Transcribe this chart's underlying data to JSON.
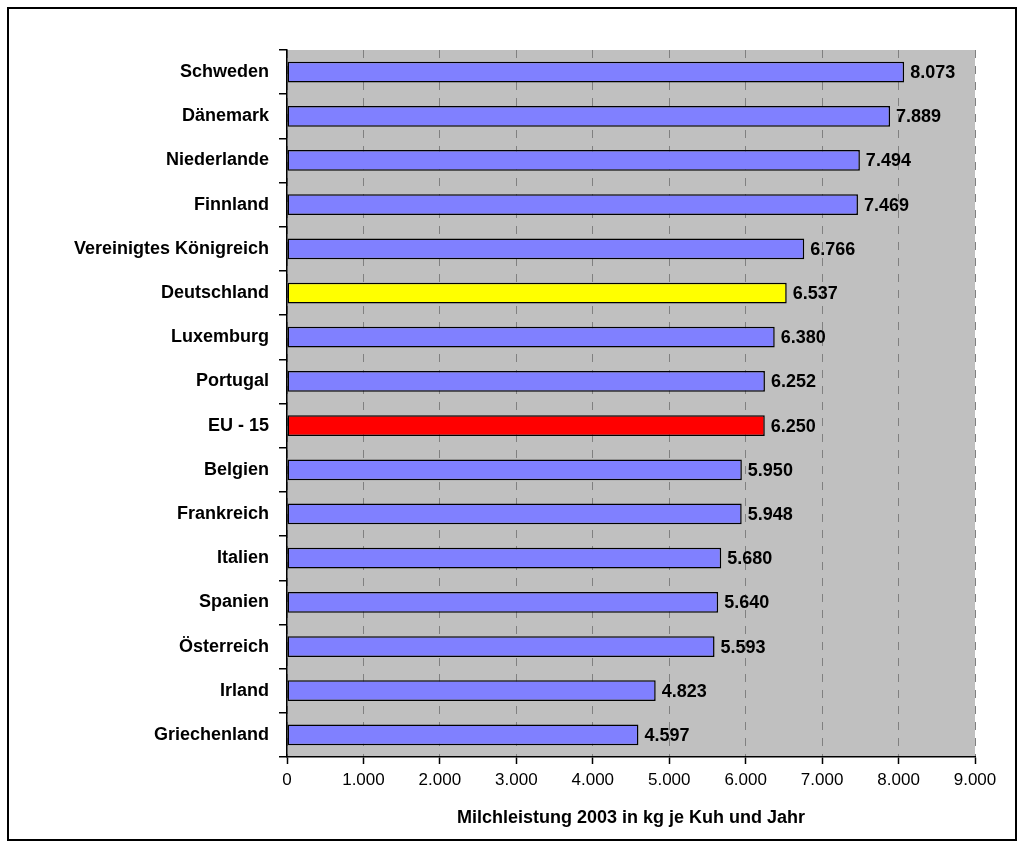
{
  "chart_data": {
    "type": "bar",
    "orientation": "horizontal",
    "xlabel": "Milchleistung 2003 in kg je Kuh und Jahr",
    "categories": [
      "Schweden",
      "Dänemark",
      "Niederlande",
      "Finnland",
      "Vereinigtes Königreich",
      "Deutschland",
      "Luxemburg",
      "Portugal",
      "EU - 15",
      "Belgien",
      "Frankreich",
      "Italien",
      "Spanien",
      "Österreich",
      "Irland",
      "Griechenland"
    ],
    "values": [
      8073,
      7889,
      7494,
      7469,
      6766,
      6537,
      6380,
      6252,
      6250,
      5950,
      5948,
      5680,
      5640,
      5593,
      4823,
      4597
    ],
    "colors": [
      "#8080ff",
      "#8080ff",
      "#8080ff",
      "#8080ff",
      "#8080ff",
      "#ffff00",
      "#8080ff",
      "#8080ff",
      "#ff0000",
      "#8080ff",
      "#8080ff",
      "#8080ff",
      "#8080ff",
      "#8080ff",
      "#8080ff",
      "#8080ff"
    ],
    "value_labels": [
      "8.073",
      "7.889",
      "7.494",
      "7.469",
      "6.766",
      "6.537",
      "6.380",
      "6.252",
      "6.250",
      "5.950",
      "5.948",
      "5.680",
      "5.640",
      "5.593",
      "4.823",
      "4.597"
    ],
    "xlim": [
      0,
      9000
    ],
    "xticks": [
      0,
      {
        "value": 1000,
        "label": "1.000"
      },
      {
        "value": 2000,
        "label": "2.000"
      },
      {
        "value": 3000,
        "label": "3.000"
      },
      {
        "value": 4000,
        "label": "4.000"
      },
      {
        "value": 5000,
        "label": "5.000"
      },
      {
        "value": 6000,
        "label": "6.000"
      },
      {
        "value": 7000,
        "label": "7.000"
      },
      {
        "value": 8000,
        "label": "8.000"
      },
      {
        "value": 9000,
        "label": "9.000"
      }
    ],
    "grid": "x"
  }
}
